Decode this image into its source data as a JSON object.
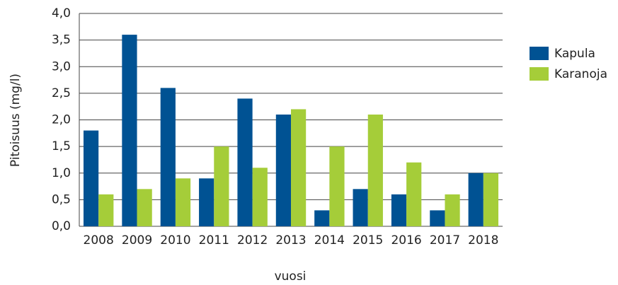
{
  "chart_data": {
    "type": "bar",
    "categories": [
      "2008",
      "2009",
      "2010",
      "2011",
      "2012",
      "2013",
      "2014",
      "2015",
      "2016",
      "2017",
      "2018"
    ],
    "series": [
      {
        "name": "Kapula",
        "color": "#005293",
        "values": [
          1.8,
          3.6,
          2.6,
          0.9,
          2.4,
          2.1,
          0.3,
          0.7,
          0.6,
          0.3,
          1.0
        ]
      },
      {
        "name": "Karanoja",
        "color": "#a5cd39",
        "values": [
          0.6,
          0.7,
          0.9,
          1.5,
          1.1,
          2.2,
          1.5,
          2.1,
          1.2,
          0.6,
          1.0
        ]
      }
    ],
    "ylabel": "Pitoisuus (mg/l)",
    "xlabel": "vuosi",
    "ylim": [
      0,
      4
    ],
    "yticks": [
      {
        "value": 0,
        "label": "0,0"
      },
      {
        "value": 0.5,
        "label": "0,5"
      },
      {
        "value": 1,
        "label": "1,0"
      },
      {
        "value": 1.5,
        "label": "1,5"
      },
      {
        "value": 2,
        "label": "2,0"
      },
      {
        "value": 2.5,
        "label": "2,5"
      },
      {
        "value": 3,
        "label": "3,0"
      },
      {
        "value": 3.5,
        "label": "3,5"
      },
      {
        "value": 4,
        "label": "4,0"
      }
    ],
    "grid": true,
    "legend": "right"
  }
}
